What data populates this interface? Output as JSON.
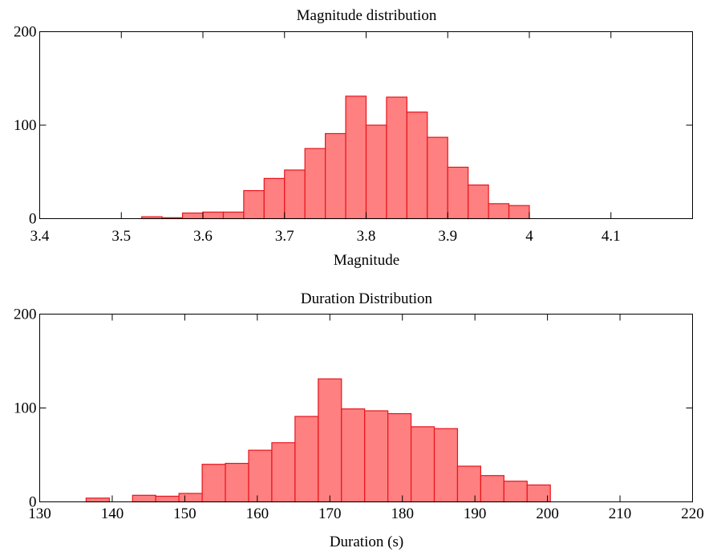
{
  "colors": {
    "bar_fill": "#ff8080",
    "bar_stroke": "#e8141c",
    "axis": "#000000",
    "background": "#ffffff"
  },
  "chart_data": [
    {
      "type": "bar",
      "title": "Magnitude distribution",
      "xlabel": "Magnitude",
      "ylabel": "",
      "xlim": [
        3.4,
        4.2
      ],
      "ylim": [
        0,
        200
      ],
      "xticks": [
        3.4,
        3.5,
        3.6,
        3.7,
        3.8,
        3.9,
        4.0,
        4.1
      ],
      "xtick_labels": [
        "3.4",
        "3.5",
        "3.6",
        "3.7",
        "3.8",
        "3.9",
        "4",
        "4.1"
      ],
      "yticks": [
        0,
        100,
        200
      ],
      "ytick_labels": [
        "0",
        "100",
        "200"
      ],
      "grid": false,
      "bin_edges": [
        3.525,
        3.55,
        3.575,
        3.6,
        3.625,
        3.65,
        3.675,
        3.7,
        3.725,
        3.75,
        3.775,
        3.8,
        3.825,
        3.85,
        3.875,
        3.9,
        3.925,
        3.95,
        3.975,
        4.0
      ],
      "values": [
        2,
        1,
        6,
        7,
        7,
        30,
        43,
        52,
        75,
        91,
        131,
        100,
        130,
        114,
        87,
        55,
        36,
        16,
        14
      ]
    },
    {
      "type": "bar",
      "title": "Duration Distribution",
      "xlabel": "Duration (s)",
      "ylabel": "",
      "xlim": [
        130,
        220
      ],
      "ylim": [
        0,
        200
      ],
      "xticks": [
        130,
        140,
        150,
        160,
        170,
        180,
        190,
        200,
        210,
        220
      ],
      "xtick_labels": [
        "130",
        "140",
        "150",
        "160",
        "170",
        "180",
        "190",
        "200",
        "210",
        "220"
      ],
      "yticks": [
        0,
        100,
        200
      ],
      "ytick_labels": [
        "0",
        "100",
        "200"
      ],
      "grid": false,
      "bin_edges": [
        136.4,
        139.6,
        142.8,
        146.0,
        149.2,
        152.4,
        155.6,
        158.8,
        162.0,
        165.2,
        168.4,
        171.6,
        174.8,
        178.0,
        181.2,
        184.4,
        187.6,
        190.8,
        194.0,
        197.2,
        200.4
      ],
      "values": [
        4,
        0,
        7,
        6,
        9,
        40,
        41,
        55,
        63,
        91,
        131,
        99,
        97,
        94,
        80,
        78,
        38,
        28,
        22,
        18
      ]
    }
  ]
}
